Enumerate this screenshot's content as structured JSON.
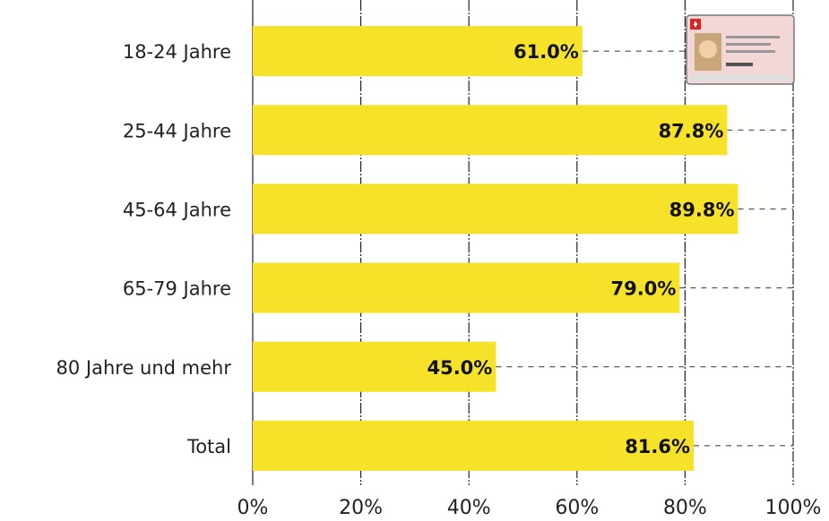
{
  "chart_data": {
    "type": "bar",
    "orientation": "horizontal",
    "categories": [
      "18-24 Jahre",
      "25-44 Jahre",
      "45-64 Jahre",
      "65-79 Jahre",
      "80 Jahre und mehr",
      "Total"
    ],
    "values": [
      61.0,
      87.8,
      89.8,
      79.0,
      45.0,
      81.6
    ],
    "value_labels": [
      "61.0%",
      "87.8%",
      "89.8%",
      "79.0%",
      "45.0%",
      "81.6%"
    ],
    "color": "#f7e22a",
    "xlim": [
      0,
      100
    ],
    "xticks": [
      {
        "value": 0,
        "label": "0%"
      },
      {
        "value": 20,
        "label": "20%"
      },
      {
        "value": 40,
        "label": "40%"
      },
      {
        "value": 60,
        "label": "60%"
      },
      {
        "value": 80,
        "label": "80%"
      },
      {
        "value": 100,
        "label": "100%"
      }
    ],
    "grid": true
  }
}
